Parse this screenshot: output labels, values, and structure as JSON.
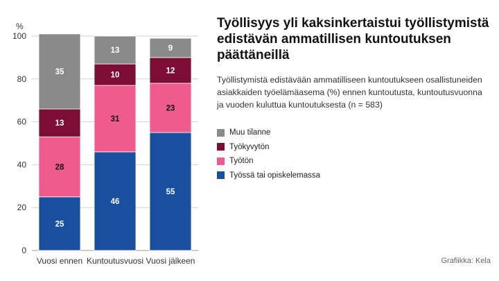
{
  "title": "Työllisyys yli kaksinkertaistui työllistymistä edistävän ammatillisen kuntoutuksen päättäneillä",
  "subtitle": "Työllistymistä edistävään ammatilliseen kuntoutukseen osallistuneiden asiakkaiden työelämäasema (%) ennen kuntoutusta, kuntoutusvuonna ja vuoden kuluttua kuntoutuksesta (n = 583)",
  "credit": "Grafiikka: Kela",
  "chart_data": {
    "type": "bar",
    "stacked": true,
    "ylabel": "%",
    "ylim": [
      0,
      100
    ],
    "yticks": [
      0,
      20,
      40,
      60,
      80,
      100
    ],
    "categories": [
      "Vuosi ennen",
      "Kuntoutusvuosi",
      "Vuosi jälkeen"
    ],
    "series": [
      {
        "name": "Työssä tai opiskelemassa",
        "color": "#1a4fa0",
        "label_color": "#ffffff",
        "values": [
          25,
          46,
          55
        ]
      },
      {
        "name": "Työtön",
        "color": "#ef5b8c",
        "label_color": "#111111",
        "values": [
          28,
          31,
          23
        ]
      },
      {
        "name": "Työkyvytön",
        "color": "#7c0e35",
        "label_color": "#ffffff",
        "values": [
          13,
          10,
          12
        ]
      },
      {
        "name": "Muu tilanne",
        "color": "#8a8a8a",
        "label_color": "#ffffff",
        "values": [
          35,
          13,
          9
        ]
      }
    ],
    "legend_order": [
      "Muu tilanne",
      "Työkyvytön",
      "Työtön",
      "Työssä tai opiskelemassa"
    ]
  }
}
